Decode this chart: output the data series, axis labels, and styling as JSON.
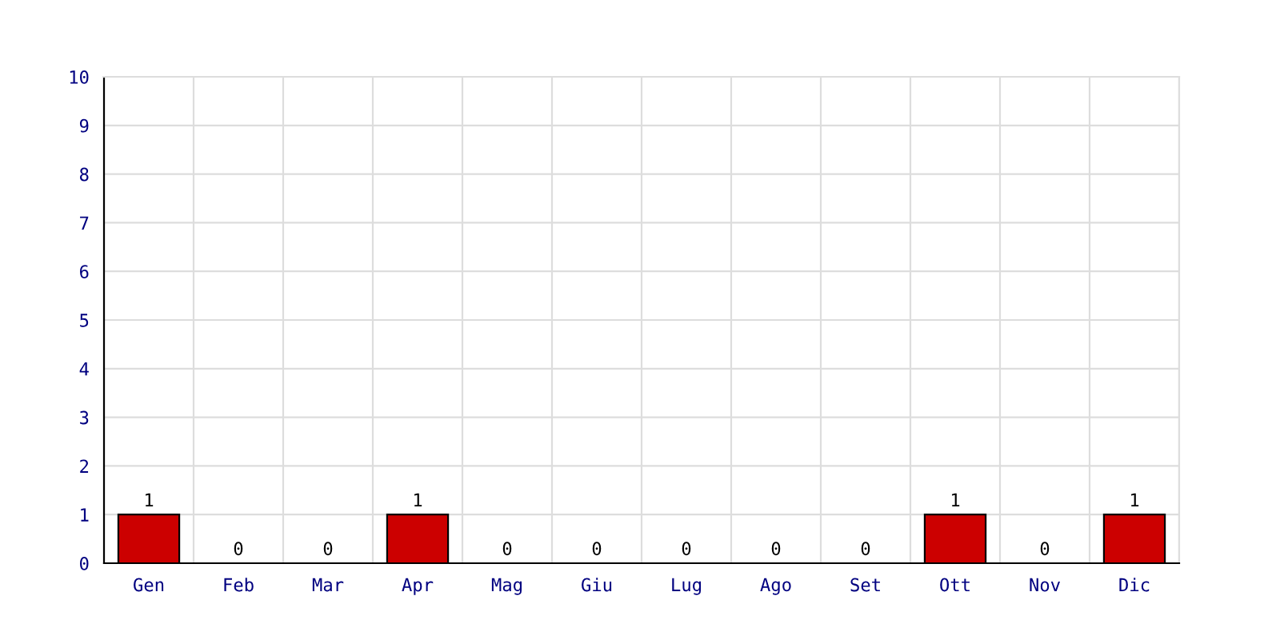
{
  "chart_data": {
    "type": "bar",
    "categories": [
      "Gen",
      "Feb",
      "Mar",
      "Apr",
      "Mag",
      "Giu",
      "Lug",
      "Ago",
      "Set",
      "Ott",
      "Nov",
      "Dic"
    ],
    "values": [
      1,
      0,
      0,
      1,
      0,
      0,
      0,
      0,
      0,
      1,
      0,
      1
    ],
    "color": "#cc0000",
    "ylim": [
      0,
      10
    ],
    "yticks": [
      0,
      1,
      2,
      3,
      4,
      5,
      6,
      7,
      8,
      9,
      10
    ],
    "grid": true,
    "data_labels": true
  }
}
